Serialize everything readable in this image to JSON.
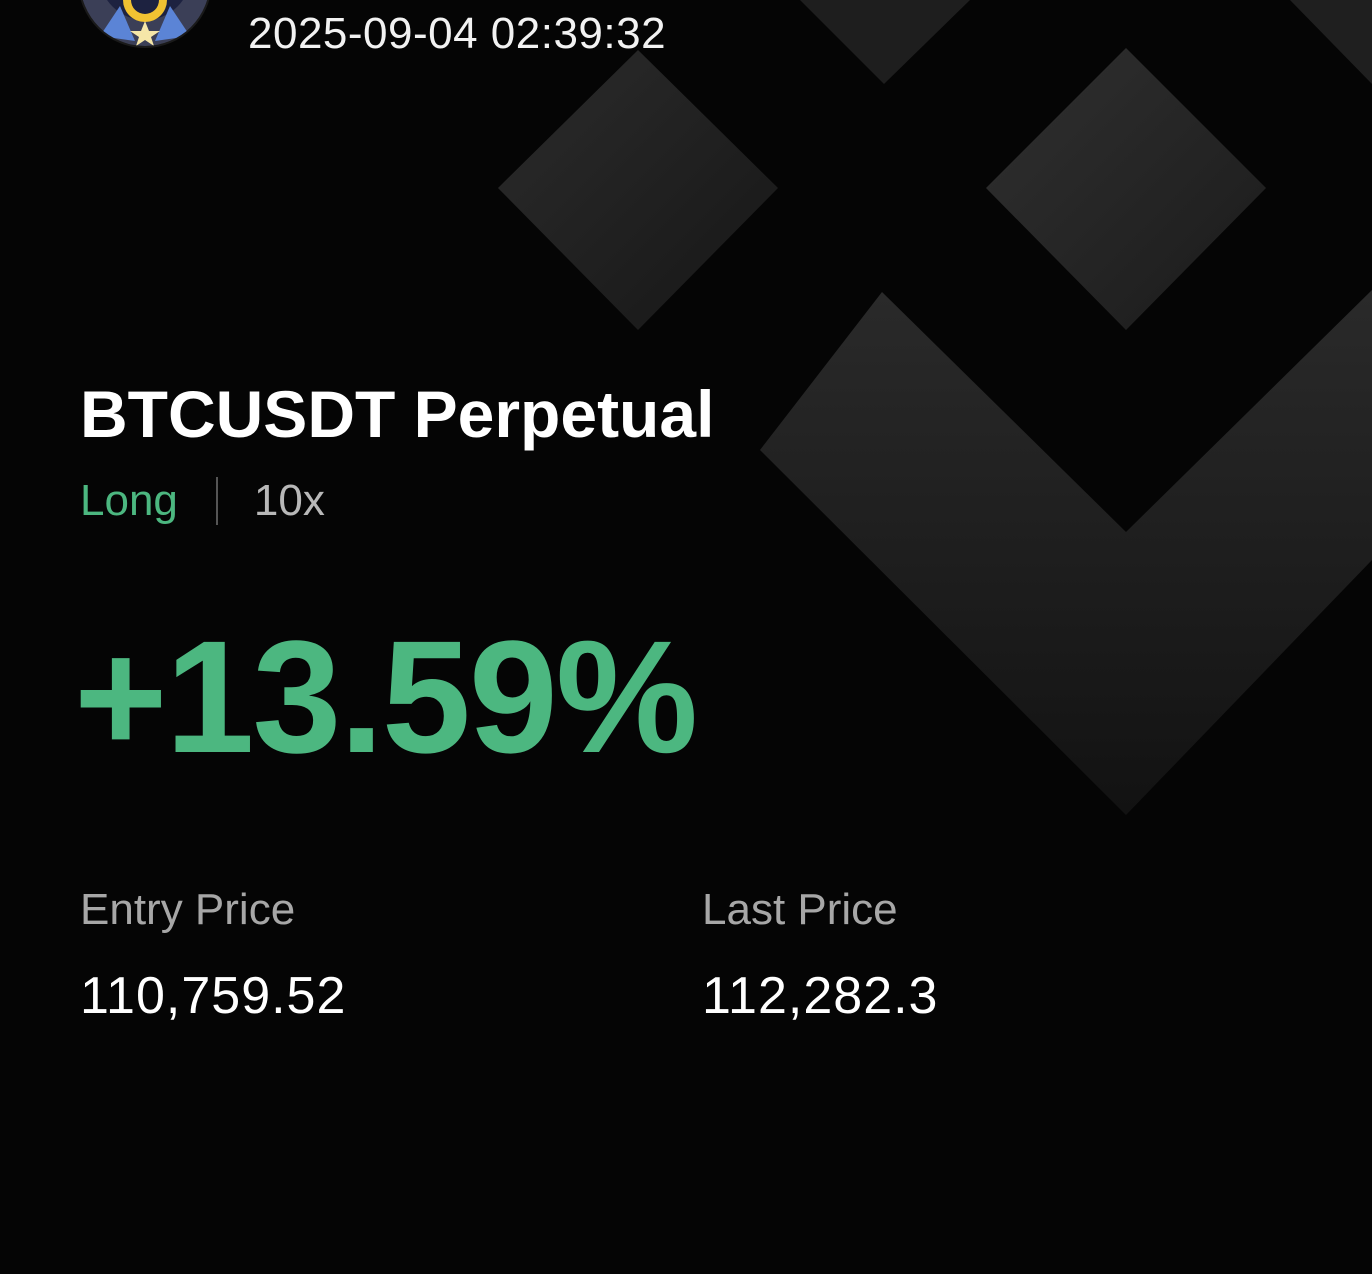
{
  "card": {
    "timestamp": "2025-09-04 02:39:32",
    "pair": "BTCUSDT Perpetual",
    "side": "Long",
    "leverage": "10x",
    "pnl_percent": "+13.59%",
    "entry_label": "Entry Price",
    "entry_value": "110,759.52",
    "last_label": "Last Price",
    "last_value": "112,282.3"
  },
  "icons": {
    "background": "binance-logo-icon",
    "avatar": "user-avatar-icon"
  },
  "colors": {
    "background": "#050505",
    "positive": "#4cb780",
    "label": "#a7a7a7",
    "text": "#ffffff"
  }
}
